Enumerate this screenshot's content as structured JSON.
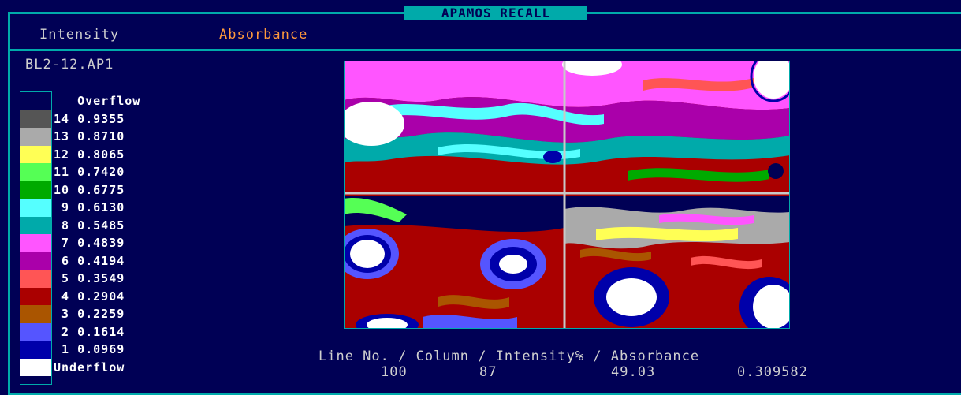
{
  "window": {
    "title": "APAMOS RECALL"
  },
  "menu": {
    "intensity_label": "Intensity",
    "absorbance_label": "Absorbance"
  },
  "file": {
    "name": "BL2-12.AP1"
  },
  "legend": {
    "items": [
      {
        "text": "   Overflow",
        "color": "#000055"
      },
      {
        "text": "14 0.9355",
        "color": "#555555"
      },
      {
        "text": "13 0.8710",
        "color": "#aaaaaa"
      },
      {
        "text": "12 0.8065",
        "color": "#ffff55"
      },
      {
        "text": "11 0.7420",
        "color": "#55ff55"
      },
      {
        "text": "10 0.6775",
        "color": "#00aa00"
      },
      {
        "text": " 9 0.6130",
        "color": "#55ffff"
      },
      {
        "text": " 8 0.5485",
        "color": "#00aaaa"
      },
      {
        "text": " 7 0.4839",
        "color": "#ff55ff"
      },
      {
        "text": " 6 0.4194",
        "color": "#aa00aa"
      },
      {
        "text": " 5 0.3549",
        "color": "#ff5555"
      },
      {
        "text": " 4 0.2904",
        "color": "#aa0000"
      },
      {
        "text": " 3 0.2259",
        "color": "#aa5500"
      },
      {
        "text": " 2 0.1614",
        "color": "#5555ff"
      },
      {
        "text": " 1 0.0969",
        "color": "#0000aa"
      },
      {
        "text": "Underflow",
        "color": "#ffffff"
      }
    ]
  },
  "readout": {
    "header": "Line No. / Column / Intensity% / Absorbance",
    "line_no": "100",
    "column": "87",
    "intensity_pct": "49.03",
    "absorbance": "0.309582"
  },
  "colors": {
    "frame": "#00aaaa",
    "background": "#000055",
    "crosshair": "#c8c8c8"
  }
}
